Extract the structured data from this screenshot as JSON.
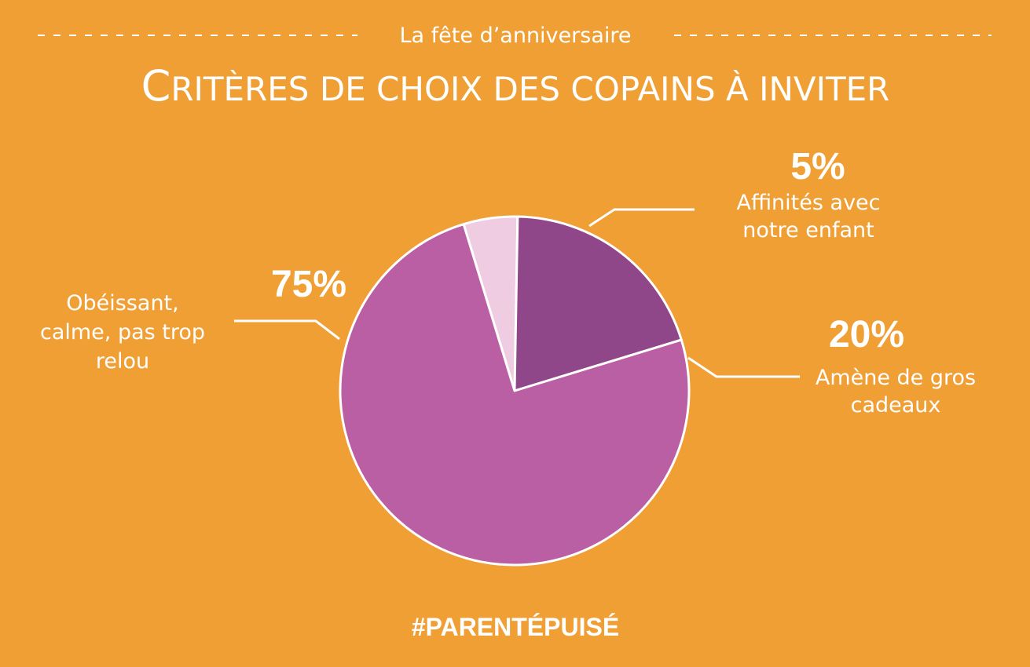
{
  "header": {
    "subtitle": "La fête d’anniversaire",
    "title_first": "C",
    "title_rest": "RITÈRES DE CHOIX DES COPAINS À INVITER"
  },
  "footer": {
    "hashtag": "#PARENTÉPUISÉ"
  },
  "chart_data": {
    "type": "pie",
    "title": "Critères de choix des copains à inviter",
    "slices": [
      {
        "label_lines": [
          "Affinités avec",
          "notre enfant"
        ],
        "value": 5,
        "percent_label": "5%",
        "color": "#f0cce3"
      },
      {
        "label_lines": [
          "Amène de gros",
          "cadeaux"
        ],
        "value": 20,
        "percent_label": "20%",
        "color": "#8f4789"
      },
      {
        "label_lines": [
          "Obéissant,",
          "calme, pas trop",
          "relou"
        ],
        "value": 75,
        "percent_label": "75%",
        "color": "#bb5fa4"
      }
    ]
  }
}
